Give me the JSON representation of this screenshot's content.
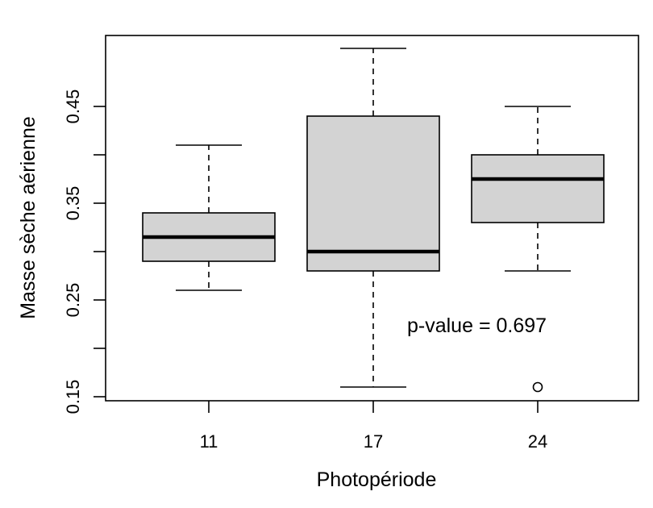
{
  "chart_data": {
    "type": "box",
    "title": "",
    "xlabel": "Photopériode",
    "ylabel": "Masse sèche aérienne",
    "ylim": [
      0.15,
      0.5
    ],
    "y_ticks": [
      0.15,
      0.2,
      0.25,
      0.3,
      0.35,
      0.4,
      0.45
    ],
    "y_tick_labels": [
      "0.15",
      "0.25",
      "0.35",
      "0.45"
    ],
    "categories": [
      "11",
      "17",
      "24"
    ],
    "boxes": [
      {
        "category": "11",
        "whisker_low": 0.26,
        "q1": 0.29,
        "median": 0.315,
        "q3": 0.34,
        "whisker_high": 0.41,
        "outliers": []
      },
      {
        "category": "17",
        "whisker_low": 0.16,
        "q1": 0.28,
        "median": 0.3,
        "q3": 0.44,
        "whisker_high": 0.51,
        "outliers": []
      },
      {
        "category": "24",
        "whisker_low": 0.28,
        "q1": 0.33,
        "median": 0.375,
        "q3": 0.4,
        "whisker_high": 0.45,
        "outliers": [
          0.16
        ]
      }
    ],
    "annotations": [
      {
        "text": "p-value = 0.697"
      }
    ],
    "box_fill": "#d3d3d3",
    "line_color": "#000000",
    "grid": false,
    "legend": "none"
  }
}
